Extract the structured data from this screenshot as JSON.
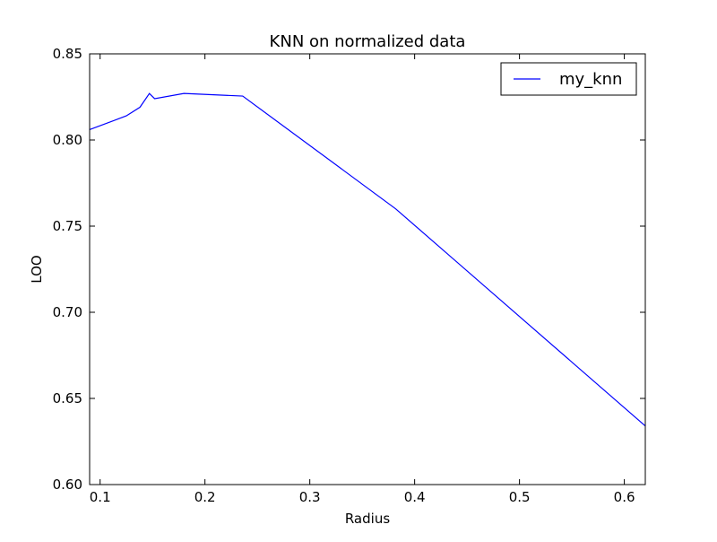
{
  "chart_data": {
    "type": "line",
    "title": "KNN on normalized data",
    "xlabel": "Radius",
    "ylabel": "LOO",
    "xlim": [
      0.09,
      0.62
    ],
    "ylim": [
      0.6,
      0.85
    ],
    "xticks": [
      0.1,
      0.2,
      0.3,
      0.4,
      0.5,
      0.6
    ],
    "xtick_labels": [
      "0.1",
      "0.2",
      "0.3",
      "0.4",
      "0.5",
      "0.6"
    ],
    "yticks": [
      0.6,
      0.65,
      0.7,
      0.75,
      0.8,
      0.85
    ],
    "ytick_labels": [
      "0.60",
      "0.65",
      "0.70",
      "0.75",
      "0.80",
      "0.85"
    ],
    "grid": false,
    "legend_position": "top-right",
    "series": [
      {
        "name": "my_knn",
        "color": "#0000ff",
        "x": [
          0.09,
          0.125,
          0.138,
          0.147,
          0.152,
          0.18,
          0.236,
          0.382,
          0.62
        ],
        "y": [
          0.806,
          0.814,
          0.819,
          0.827,
          0.824,
          0.827,
          0.8255,
          0.76,
          0.634
        ]
      }
    ]
  }
}
